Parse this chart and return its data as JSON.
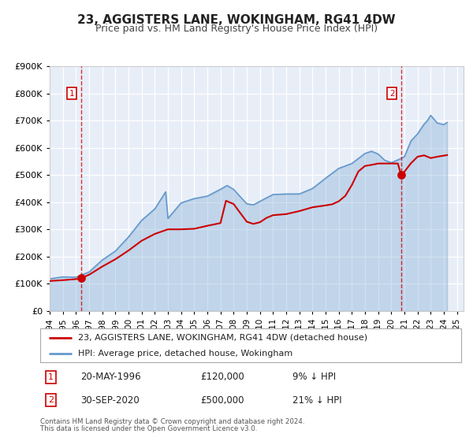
{
  "title": "23, AGGISTERS LANE, WOKINGHAM, RG41 4DW",
  "subtitle": "Price paid vs. HM Land Registry's House Price Index (HPI)",
  "legend_line1": "23, AGGISTERS LANE, WOKINGHAM, RG41 4DW (detached house)",
  "legend_line2": "HPI: Average price, detached house, Wokingham",
  "point1_date": "20-MAY-1996",
  "point1_price": "£120,000",
  "point1_hpi": "9% ↓ HPI",
  "point1_x": 1996.38,
  "point1_y": 120000,
  "point2_date": "30-SEP-2020",
  "point2_price": "£500,000",
  "point2_hpi": "21% ↓ HPI",
  "point2_x": 2020.75,
  "point2_y": 500000,
  "footer_line1": "Contains HM Land Registry data © Crown copyright and database right 2024.",
  "footer_line2": "This data is licensed under the Open Government Licence v3.0.",
  "price_color": "#cc0000",
  "hpi_color": "#6699cc",
  "bg_color": "#e8eef8",
  "grid_color": "#ffffff",
  "xlim": [
    1994,
    2025.5
  ],
  "ylim": [
    0,
    900000
  ]
}
